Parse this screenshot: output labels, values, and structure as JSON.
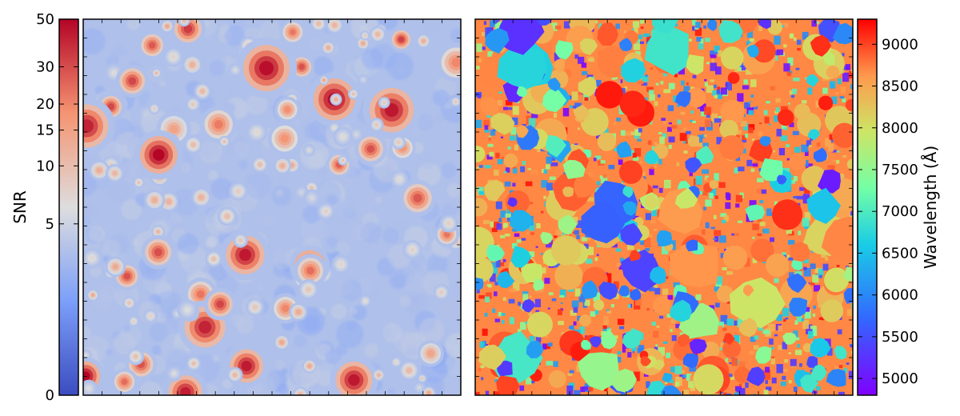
{
  "chart_data": [
    {
      "type": "heatmap",
      "panel": "left",
      "colormap": "coolwarm",
      "colorbar": {
        "label": "SNR",
        "scale": "log1p",
        "range": [
          0,
          50
        ],
        "ticks": [
          0,
          5,
          10,
          15,
          20,
          30,
          50
        ],
        "tick_labels": [
          "0",
          "5",
          "10",
          "15",
          "20",
          "30",
          "50"
        ]
      },
      "background_snr": 3.5,
      "grid": false
    },
    {
      "type": "heatmap",
      "panel": "right",
      "colormap": "rainbow",
      "colorbar": {
        "label": "Wavelength (Å)",
        "scale": "linear",
        "range": [
          4800,
          9300
        ],
        "ticks": [
          5000,
          5500,
          6000,
          6500,
          7000,
          7500,
          8000,
          8500,
          9000
        ],
        "tick_labels": [
          "5000",
          "5500",
          "6000",
          "6500",
          "7000",
          "7500",
          "8000",
          "8500",
          "9000"
        ]
      },
      "dominant_wavelength": 8700,
      "grid": false
    }
  ]
}
